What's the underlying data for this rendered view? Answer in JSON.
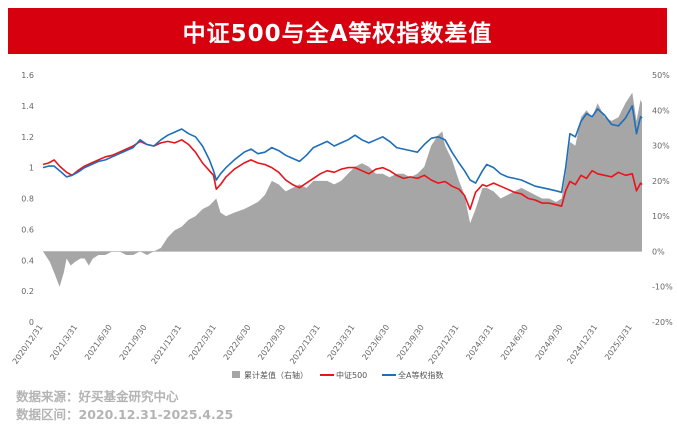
{
  "title": "中证500与全A等权指数差值",
  "footer": {
    "source": "数据来源：好买基金研究中心",
    "range": "数据区间：2020.12.31-2025.4.25"
  },
  "chart_data": {
    "type": "line",
    "left_axis": {
      "ticks": [
        "0",
        "0.2",
        "0.4",
        "0.6",
        "0.8",
        "1",
        "1.2",
        "1.4",
        "1.6"
      ],
      "ylim": [
        0,
        1.6
      ]
    },
    "right_axis": {
      "ticks": [
        "-20%",
        "-10%",
        "0%",
        "10%",
        "20%",
        "30%",
        "40%",
        "50%"
      ],
      "ylim": [
        -20,
        50
      ]
    },
    "x_ticks": [
      "2020/12/31",
      "2021/3/31",
      "2021/6/30",
      "2021/9/30",
      "2021/12/31",
      "2022/3/31",
      "2022/6/30",
      "2022/9/30",
      "2022/12/31",
      "2023/3/31",
      "2023/6/30",
      "2023/9/30",
      "2023/12/31",
      "2024/3/31",
      "2024/6/30",
      "2024/9/30",
      "2024/12/31",
      "2025/3/31"
    ],
    "x_positions": [
      0,
      0.25,
      0.5,
      0.75,
      1.0,
      1.25,
      1.5,
      1.75,
      2.0,
      2.25,
      2.5,
      2.75,
      3.0,
      3.25,
      3.5,
      3.75,
      4.0,
      4.25
    ],
    "x_range": [
      0,
      4.32
    ],
    "series": [
      {
        "name": "中证500",
        "color": "#e8141c",
        "points": [
          [
            0,
            1.02
          ],
          [
            0.04,
            1.03
          ],
          [
            0.08,
            1.05
          ],
          [
            0.12,
            1.01
          ],
          [
            0.17,
            0.97
          ],
          [
            0.21,
            0.95
          ],
          [
            0.25,
            0.98
          ],
          [
            0.3,
            1.01
          ],
          [
            0.35,
            1.03
          ],
          [
            0.4,
            1.05
          ],
          [
            0.45,
            1.07
          ],
          [
            0.5,
            1.08
          ],
          [
            0.55,
            1.1
          ],
          [
            0.6,
            1.12
          ],
          [
            0.65,
            1.14
          ],
          [
            0.7,
            1.17
          ],
          [
            0.75,
            1.15
          ],
          [
            0.8,
            1.14
          ],
          [
            0.85,
            1.16
          ],
          [
            0.9,
            1.17
          ],
          [
            0.95,
            1.16
          ],
          [
            1.0,
            1.18
          ],
          [
            1.05,
            1.15
          ],
          [
            1.1,
            1.1
          ],
          [
            1.15,
            1.03
          ],
          [
            1.2,
            0.98
          ],
          [
            1.23,
            0.95
          ],
          [
            1.25,
            0.86
          ],
          [
            1.28,
            0.89
          ],
          [
            1.32,
            0.94
          ],
          [
            1.38,
            0.99
          ],
          [
            1.45,
            1.03
          ],
          [
            1.5,
            1.05
          ],
          [
            1.55,
            1.03
          ],
          [
            1.6,
            1.02
          ],
          [
            1.65,
            1.0
          ],
          [
            1.7,
            0.97
          ],
          [
            1.75,
            0.92
          ],
          [
            1.8,
            0.89
          ],
          [
            1.85,
            0.87
          ],
          [
            1.9,
            0.9
          ],
          [
            1.95,
            0.93
          ],
          [
            2.0,
            0.96
          ],
          [
            2.05,
            0.98
          ],
          [
            2.1,
            0.97
          ],
          [
            2.15,
            0.99
          ],
          [
            2.2,
            1.0
          ],
          [
            2.25,
            1.0
          ],
          [
            2.3,
            0.98
          ],
          [
            2.35,
            0.96
          ],
          [
            2.4,
            0.99
          ],
          [
            2.45,
            1.0
          ],
          [
            2.5,
            0.98
          ],
          [
            2.55,
            0.95
          ],
          [
            2.6,
            0.93
          ],
          [
            2.65,
            0.94
          ],
          [
            2.7,
            0.93
          ],
          [
            2.75,
            0.95
          ],
          [
            2.8,
            0.92
          ],
          [
            2.85,
            0.9
          ],
          [
            2.9,
            0.91
          ],
          [
            2.95,
            0.88
          ],
          [
            3.0,
            0.86
          ],
          [
            3.04,
            0.82
          ],
          [
            3.08,
            0.73
          ],
          [
            3.12,
            0.84
          ],
          [
            3.17,
            0.89
          ],
          [
            3.2,
            0.88
          ],
          [
            3.25,
            0.9
          ],
          [
            3.3,
            0.88
          ],
          [
            3.35,
            0.86
          ],
          [
            3.4,
            0.84
          ],
          [
            3.45,
            0.83
          ],
          [
            3.5,
            0.8
          ],
          [
            3.55,
            0.79
          ],
          [
            3.6,
            0.77
          ],
          [
            3.65,
            0.77
          ],
          [
            3.7,
            0.76
          ],
          [
            3.74,
            0.75
          ],
          [
            3.77,
            0.85
          ],
          [
            3.8,
            0.91
          ],
          [
            3.84,
            0.89
          ],
          [
            3.88,
            0.95
          ],
          [
            3.92,
            0.93
          ],
          [
            3.96,
            0.98
          ],
          [
            4.0,
            0.96
          ],
          [
            4.05,
            0.95
          ],
          [
            4.1,
            0.94
          ],
          [
            4.15,
            0.97
          ],
          [
            4.2,
            0.95
          ],
          [
            4.25,
            0.96
          ],
          [
            4.28,
            0.85
          ],
          [
            4.31,
            0.9
          ],
          [
            4.32,
            0.89
          ]
        ]
      },
      {
        "name": "全A等权指数",
        "color": "#1e6eb9",
        "points": [
          [
            0,
            1.0
          ],
          [
            0.04,
            1.01
          ],
          [
            0.08,
            1.01
          ],
          [
            0.12,
            0.98
          ],
          [
            0.17,
            0.94
          ],
          [
            0.21,
            0.95
          ],
          [
            0.25,
            0.97
          ],
          [
            0.3,
            1.0
          ],
          [
            0.35,
            1.02
          ],
          [
            0.4,
            1.04
          ],
          [
            0.45,
            1.05
          ],
          [
            0.5,
            1.07
          ],
          [
            0.55,
            1.09
          ],
          [
            0.6,
            1.11
          ],
          [
            0.65,
            1.13
          ],
          [
            0.7,
            1.18
          ],
          [
            0.75,
            1.15
          ],
          [
            0.8,
            1.14
          ],
          [
            0.85,
            1.18
          ],
          [
            0.9,
            1.21
          ],
          [
            0.95,
            1.23
          ],
          [
            1.0,
            1.25
          ],
          [
            1.05,
            1.22
          ],
          [
            1.1,
            1.2
          ],
          [
            1.15,
            1.14
          ],
          [
            1.2,
            1.05
          ],
          [
            1.23,
            0.98
          ],
          [
            1.25,
            0.92
          ],
          [
            1.28,
            0.96
          ],
          [
            1.32,
            1.0
          ],
          [
            1.38,
            1.05
          ],
          [
            1.45,
            1.1
          ],
          [
            1.5,
            1.12
          ],
          [
            1.55,
            1.09
          ],
          [
            1.6,
            1.1
          ],
          [
            1.65,
            1.13
          ],
          [
            1.7,
            1.11
          ],
          [
            1.75,
            1.08
          ],
          [
            1.8,
            1.06
          ],
          [
            1.85,
            1.04
          ],
          [
            1.9,
            1.08
          ],
          [
            1.95,
            1.13
          ],
          [
            2.0,
            1.15
          ],
          [
            2.05,
            1.17
          ],
          [
            2.1,
            1.14
          ],
          [
            2.15,
            1.16
          ],
          [
            2.2,
            1.18
          ],
          [
            2.25,
            1.21
          ],
          [
            2.3,
            1.18
          ],
          [
            2.35,
            1.16
          ],
          [
            2.4,
            1.18
          ],
          [
            2.45,
            1.2
          ],
          [
            2.5,
            1.17
          ],
          [
            2.55,
            1.13
          ],
          [
            2.6,
            1.12
          ],
          [
            2.65,
            1.11
          ],
          [
            2.7,
            1.1
          ],
          [
            2.75,
            1.15
          ],
          [
            2.8,
            1.19
          ],
          [
            2.85,
            1.2
          ],
          [
            2.9,
            1.18
          ],
          [
            2.95,
            1.1
          ],
          [
            3.0,
            1.03
          ],
          [
            3.04,
            0.98
          ],
          [
            3.08,
            0.92
          ],
          [
            3.12,
            0.9
          ],
          [
            3.17,
            0.98
          ],
          [
            3.2,
            1.02
          ],
          [
            3.25,
            1.0
          ],
          [
            3.3,
            0.96
          ],
          [
            3.35,
            0.94
          ],
          [
            3.4,
            0.93
          ],
          [
            3.45,
            0.92
          ],
          [
            3.5,
            0.9
          ],
          [
            3.55,
            0.88
          ],
          [
            3.6,
            0.87
          ],
          [
            3.65,
            0.86
          ],
          [
            3.7,
            0.85
          ],
          [
            3.74,
            0.84
          ],
          [
            3.77,
            1.0
          ],
          [
            3.8,
            1.22
          ],
          [
            3.84,
            1.2
          ],
          [
            3.88,
            1.3
          ],
          [
            3.92,
            1.35
          ],
          [
            3.96,
            1.33
          ],
          [
            4.0,
            1.38
          ],
          [
            4.05,
            1.34
          ],
          [
            4.1,
            1.28
          ],
          [
            4.15,
            1.27
          ],
          [
            4.2,
            1.32
          ],
          [
            4.25,
            1.4
          ],
          [
            4.28,
            1.22
          ],
          [
            4.31,
            1.33
          ],
          [
            4.32,
            1.32
          ]
        ]
      },
      {
        "name": "累计差值（右轴）",
        "color": "#a6a6a6",
        "type": "area",
        "axis": "right",
        "points": [
          [
            0,
            0
          ],
          [
            0.05,
            -3
          ],
          [
            0.09,
            -7
          ],
          [
            0.12,
            -10
          ],
          [
            0.15,
            -6
          ],
          [
            0.17,
            -2
          ],
          [
            0.2,
            -4
          ],
          [
            0.23,
            -3
          ],
          [
            0.27,
            -2
          ],
          [
            0.3,
            -2
          ],
          [
            0.33,
            -4
          ],
          [
            0.36,
            -2
          ],
          [
            0.4,
            -1
          ],
          [
            0.45,
            -1
          ],
          [
            0.5,
            0
          ],
          [
            0.55,
            0
          ],
          [
            0.6,
            -1
          ],
          [
            0.65,
            -1
          ],
          [
            0.7,
            0
          ],
          [
            0.75,
            -1
          ],
          [
            0.8,
            0
          ],
          [
            0.85,
            1
          ],
          [
            0.9,
            4
          ],
          [
            0.95,
            6
          ],
          [
            1.0,
            7
          ],
          [
            1.05,
            9
          ],
          [
            1.1,
            10
          ],
          [
            1.15,
            12
          ],
          [
            1.2,
            13
          ],
          [
            1.25,
            15
          ],
          [
            1.28,
            11
          ],
          [
            1.32,
            10
          ],
          [
            1.38,
            11
          ],
          [
            1.45,
            12
          ],
          [
            1.5,
            13
          ],
          [
            1.55,
            14
          ],
          [
            1.6,
            16
          ],
          [
            1.65,
            20
          ],
          [
            1.7,
            19
          ],
          [
            1.75,
            17
          ],
          [
            1.8,
            18
          ],
          [
            1.85,
            19
          ],
          [
            1.9,
            18
          ],
          [
            1.95,
            20
          ],
          [
            2.0,
            20
          ],
          [
            2.05,
            20
          ],
          [
            2.1,
            19
          ],
          [
            2.15,
            20
          ],
          [
            2.2,
            22
          ],
          [
            2.25,
            24
          ],
          [
            2.3,
            25
          ],
          [
            2.35,
            24
          ],
          [
            2.4,
            22
          ],
          [
            2.45,
            22
          ],
          [
            2.5,
            21
          ],
          [
            2.55,
            22
          ],
          [
            2.6,
            22
          ],
          [
            2.65,
            21
          ],
          [
            2.7,
            22
          ],
          [
            2.75,
            24
          ],
          [
            2.8,
            30
          ],
          [
            2.85,
            33
          ],
          [
            2.88,
            34
          ],
          [
            2.9,
            30
          ],
          [
            2.95,
            26
          ],
          [
            3.0,
            20
          ],
          [
            3.04,
            16
          ],
          [
            3.08,
            8
          ],
          [
            3.12,
            12
          ],
          [
            3.17,
            18
          ],
          [
            3.2,
            18
          ],
          [
            3.25,
            17
          ],
          [
            3.3,
            15
          ],
          [
            3.35,
            16
          ],
          [
            3.4,
            17
          ],
          [
            3.45,
            18
          ],
          [
            3.5,
            17
          ],
          [
            3.55,
            16
          ],
          [
            3.6,
            15
          ],
          [
            3.65,
            15
          ],
          [
            3.7,
            14
          ],
          [
            3.74,
            15
          ],
          [
            3.77,
            22
          ],
          [
            3.8,
            31
          ],
          [
            3.84,
            30
          ],
          [
            3.88,
            38
          ],
          [
            3.92,
            40
          ],
          [
            3.96,
            38
          ],
          [
            4.0,
            42
          ],
          [
            4.05,
            38
          ],
          [
            4.1,
            37
          ],
          [
            4.15,
            38
          ],
          [
            4.2,
            42
          ],
          [
            4.25,
            45
          ],
          [
            4.28,
            37
          ],
          [
            4.31,
            43
          ],
          [
            4.32,
            42
          ]
        ]
      }
    ],
    "legend": [
      "累计差值（右轴）",
      "中证500",
      "全A等权指数"
    ],
    "legend_position": "bottom"
  }
}
